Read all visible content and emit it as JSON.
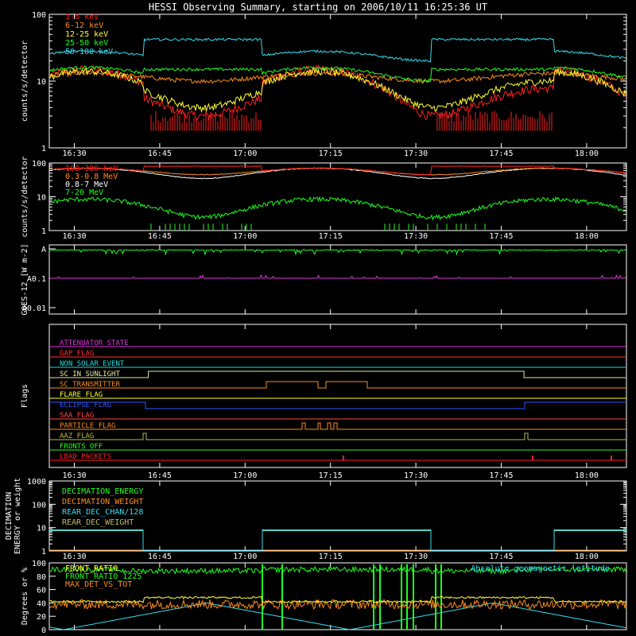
{
  "title": "HESSI Observing Summary, starting on 2006/10/11 16:25:36 UT",
  "time_ticks": [
    "16:30",
    "16:45",
    "17:00",
    "17:15",
    "17:30",
    "17:45",
    "18:00"
  ],
  "chart_data": [
    {
      "type": "line",
      "ylabel": "counts/s/detector",
      "yscale": "log",
      "ylim": [
        1,
        100
      ],
      "yticks": [
        "1",
        "10",
        "100"
      ],
      "series": [
        {
          "name": "3-6 keV",
          "color": "#ff2020"
        },
        {
          "name": "6-12 keV",
          "color": "#ff8c1a"
        },
        {
          "name": "12-25 keV",
          "color": "#ffff30"
        },
        {
          "name": "25-50 keV",
          "color": "#20ff20"
        },
        {
          "name": "50-100 keV",
          "color": "#33ddee"
        }
      ]
    },
    {
      "type": "line",
      "ylabel": "counts/s/detector",
      "yscale": "log",
      "ylim": [
        1,
        100
      ],
      "yticks": [
        "1",
        "10",
        "100"
      ],
      "series": [
        {
          "name": "100-300 keV",
          "color": "#ff2020"
        },
        {
          "name": "0.3-0.8 MeV",
          "color": "#ff8c1a"
        },
        {
          "name": "0.8-7 MeV",
          "color": "#ffffff"
        },
        {
          "name": "7-20 MeV",
          "color": "#20ff20"
        }
      ]
    },
    {
      "type": "line",
      "ylabel": "GOES-12 [W m-2]",
      "yscale": "log",
      "yticks": [
        "A",
        "A0.1",
        "A0.01"
      ]
    },
    {
      "type": "line",
      "ylabel": "Flags",
      "series": [
        {
          "name": "ATTENUATOR_STATE",
          "color": "#dd33dd"
        },
        {
          "name": "GAP_FLAG",
          "color": "#ff3030"
        },
        {
          "name": "NON_SOLAR_EVENT",
          "color": "#22dddd"
        },
        {
          "name": "SC_IN_SUNLIGHT",
          "color": "#e8e8a0"
        },
        {
          "name": "SC_TRANSMITTER",
          "color": "#ff8c1a"
        },
        {
          "name": "FLARE_FLAG",
          "color": "#ffff30"
        },
        {
          "name": "ECLIPSE_FLAG",
          "color": "#3355ff"
        },
        {
          "name": "SAA_FLAG",
          "color": "#ff4444"
        },
        {
          "name": "PARTICLE_FLAG",
          "color": "#ff8c1a"
        },
        {
          "name": "AAZ_FLAG",
          "color": "#bbbb44"
        },
        {
          "name": "FRONTS_OFF",
          "color": "#20ff20"
        },
        {
          "name": "LBAD_PACKETS",
          "color": "#ff2020"
        }
      ]
    },
    {
      "type": "line",
      "ylabel": "DECIMATION ENERGY or weight",
      "yscale": "log",
      "ylim": [
        1,
        1000
      ],
      "yticks": [
        "1",
        "10",
        "100",
        "1000"
      ],
      "series": [
        {
          "name": "DECIMATION_ENERGY",
          "color": "#20ff20"
        },
        {
          "name": "DECIMATION_WEIGHT",
          "color": "#ff8c1a"
        },
        {
          "name": "REAR_DEC_CHAN/128",
          "color": "#33ddee"
        },
        {
          "name": "REAR_DEC_WEIGHT",
          "color": "#bbbb66"
        }
      ]
    },
    {
      "type": "line",
      "ylabel": "Degrees or %",
      "ylim": [
        0,
        100
      ],
      "yticks": [
        "0",
        "20",
        "40",
        "60",
        "80",
        "100"
      ],
      "annotation": "Absolute geomagnetic latitude",
      "series": [
        {
          "name": "FRONT_RATIO",
          "color": "#ffff30"
        },
        {
          "name": "FRONT_RATIO_1225",
          "color": "#20ff20"
        },
        {
          "name": "MAX_DET_VS_TOT",
          "color": "#ff8c1a"
        }
      ]
    }
  ]
}
